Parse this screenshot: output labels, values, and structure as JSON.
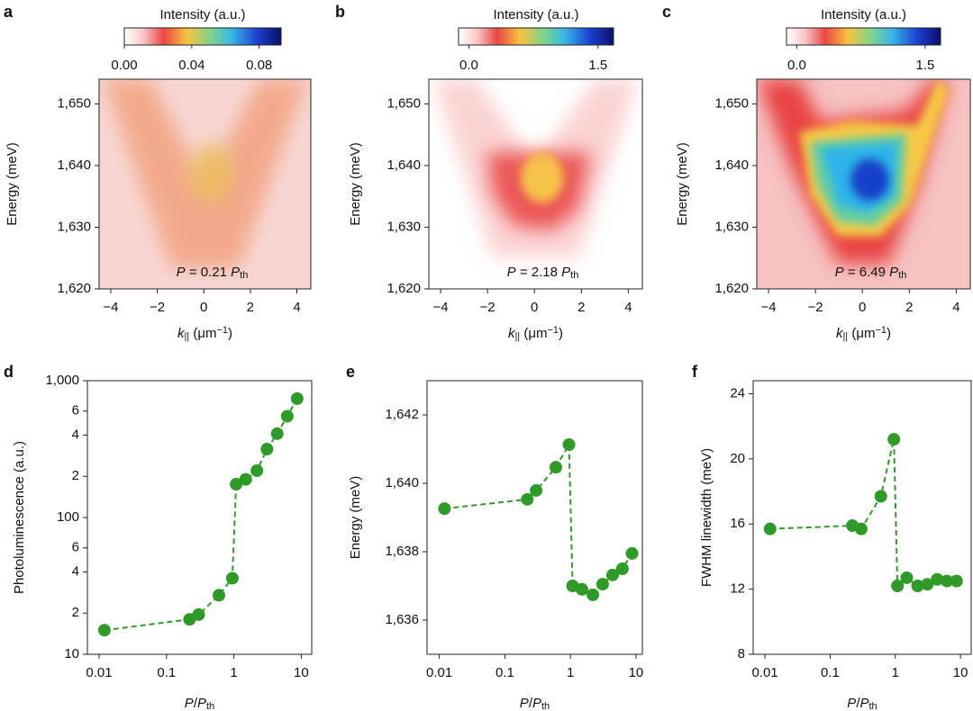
{
  "chart_data": [
    {
      "type": "heatmap",
      "panel": "a",
      "colorbar": {
        "label": "Intensity (a.u.)",
        "lim": [
          0,
          0.093
        ],
        "ticks": [
          {
            "value": 0,
            "label": "0.00"
          },
          {
            "value": 0.04,
            "label": "0.04"
          },
          {
            "value": 0.08,
            "label": "0.08"
          }
        ]
      },
      "xlim": [
        -4.5,
        4.6
      ],
      "xticks": [
        {
          "value": -4,
          "label": "−4"
        },
        {
          "value": -2,
          "label": "−2"
        },
        0,
        2,
        4
      ],
      "ylim": [
        1620,
        1654
      ],
      "yticks": [
        {
          "value": 1620,
          "label": "1,620"
        },
        {
          "value": 1630,
          "label": "1,630"
        },
        {
          "value": 1640,
          "label": "1,640"
        },
        {
          "value": 1650,
          "label": "1,650"
        }
      ],
      "xlabel": [
        "k",
        "||",
        " (μm",
        "−1",
        ")"
      ],
      "ylabel": "Energy (meV)",
      "annotation": [
        "P",
        " = 0.21 ",
        "P",
        "th"
      ]
    },
    {
      "type": "heatmap",
      "panel": "b",
      "colorbar": {
        "label": "Intensity (a.u.)",
        "lim": [
          -0.12,
          1.68
        ],
        "ticks": [
          {
            "value": 0,
            "label": "0.0"
          },
          1.5
        ]
      },
      "xlim": [
        -4.5,
        4.6
      ],
      "xticks": [
        {
          "value": -4,
          "label": "−4"
        },
        {
          "value": -2,
          "label": "−2"
        },
        0,
        2,
        4
      ],
      "ylim": [
        1620,
        1654
      ],
      "yticks": [
        {
          "value": 1620,
          "label": "1,620"
        },
        {
          "value": 1630,
          "label": "1,630"
        },
        {
          "value": 1640,
          "label": "1,640"
        },
        {
          "value": 1650,
          "label": "1,650"
        }
      ],
      "xlabel": [
        "k",
        "||",
        " (μm",
        "−1",
        ")"
      ],
      "ylabel": "Energy (meV)",
      "annotation": [
        "P",
        " = 2.18 ",
        "P",
        "th"
      ]
    },
    {
      "type": "heatmap",
      "panel": "c",
      "colorbar": {
        "label": "Intensity (a.u.)",
        "lim": [
          -0.12,
          1.68
        ],
        "ticks": [
          {
            "value": 0,
            "label": "0.0"
          },
          1.5
        ]
      },
      "xlim": [
        -4.5,
        4.6
      ],
      "xticks": [
        {
          "value": -4,
          "label": "−4"
        },
        {
          "value": -2,
          "label": "−2"
        },
        0,
        2,
        4
      ],
      "ylim": [
        1620,
        1654
      ],
      "yticks": [
        {
          "value": 1620,
          "label": "1,620"
        },
        {
          "value": 1630,
          "label": "1,630"
        },
        {
          "value": 1640,
          "label": "1,640"
        },
        {
          "value": 1650,
          "label": "1,650"
        }
      ],
      "xlabel": [
        "k",
        "||",
        " (μm",
        "−1",
        ")"
      ],
      "ylabel": "Energy (meV)",
      "annotation": [
        "P",
        " = 6.49 ",
        "P",
        "th"
      ]
    },
    {
      "type": "line",
      "panel": "d",
      "markers": true,
      "line_style": "dashed",
      "color": "#2f9a27",
      "x": [
        0.012,
        0.22,
        0.3,
        0.6,
        0.95,
        1.08,
        1.5,
        2.2,
        3.1,
        4.4,
        6.2,
        8.7
      ],
      "values": [
        15,
        18,
        19.5,
        27,
        36,
        175,
        190,
        220,
        316,
        410,
        550,
        740
      ],
      "xscale": "log",
      "yscale": "log",
      "xlim": [
        0.0067,
        14.3
      ],
      "xticks": [
        0.01,
        0.1,
        1,
        10
      ],
      "ylim": [
        10,
        1000
      ],
      "yticks": [
        10,
        {
          "value": 20,
          "label": "2"
        },
        {
          "value": 40,
          "label": "4"
        },
        {
          "value": 60,
          "label": "6"
        },
        100,
        {
          "value": 200,
          "label": "2"
        },
        {
          "value": 400,
          "label": "4"
        },
        {
          "value": 600,
          "label": "6"
        },
        {
          "value": 1000,
          "label": "1,000"
        }
      ],
      "xlabel": [
        "P",
        "/",
        "P",
        "th"
      ],
      "ylabel": "Photoluminescence (a.u.)"
    },
    {
      "type": "line",
      "panel": "e",
      "markers": true,
      "line_style": "dashed",
      "color": "#2f9a27",
      "x": [
        0.012,
        0.22,
        0.3,
        0.6,
        0.95,
        1.08,
        1.5,
        2.2,
        3.1,
        4.4,
        6.2,
        8.7
      ],
      "values": [
        1639.26,
        1639.53,
        1639.79,
        1640.47,
        1641.13,
        1637.0,
        1636.9,
        1636.74,
        1637.05,
        1637.32,
        1637.5,
        1637.95
      ],
      "xscale": "log",
      "xlim": [
        0.0065,
        12.5
      ],
      "xticks": [
        0.01,
        0.1,
        1,
        10
      ],
      "ylim": [
        1635,
        1643
      ],
      "yticks": [
        {
          "value": 1636,
          "label": "1,636"
        },
        {
          "value": 1638,
          "label": "1,638"
        },
        {
          "value": 1640,
          "label": "1,640"
        },
        {
          "value": 1642,
          "label": "1,642"
        }
      ],
      "xlabel": [
        "P",
        "/",
        "P",
        "th"
      ],
      "ylabel": "Energy (meV)"
    },
    {
      "type": "line",
      "panel": "f",
      "markers": true,
      "line_style": "dashed",
      "color": "#2f9a27",
      "x": [
        0.012,
        0.22,
        0.3,
        0.6,
        0.95,
        1.08,
        1.5,
        2.2,
        3.1,
        4.4,
        6.2,
        8.7
      ],
      "values": [
        15.7,
        15.9,
        15.7,
        17.7,
        21.2,
        12.2,
        12.7,
        12.2,
        12.3,
        12.6,
        12.5,
        12.5
      ],
      "xscale": "log",
      "xlim": [
        0.0066,
        14.6
      ],
      "xticks": [
        0.01,
        0.1,
        1,
        10
      ],
      "ylim": [
        8,
        24.8
      ],
      "yticks": [
        8,
        12,
        16,
        20,
        24
      ],
      "xlabel": [
        "P",
        "/",
        "P",
        "th"
      ],
      "ylabel": "FWHM linewidth (meV)"
    }
  ]
}
